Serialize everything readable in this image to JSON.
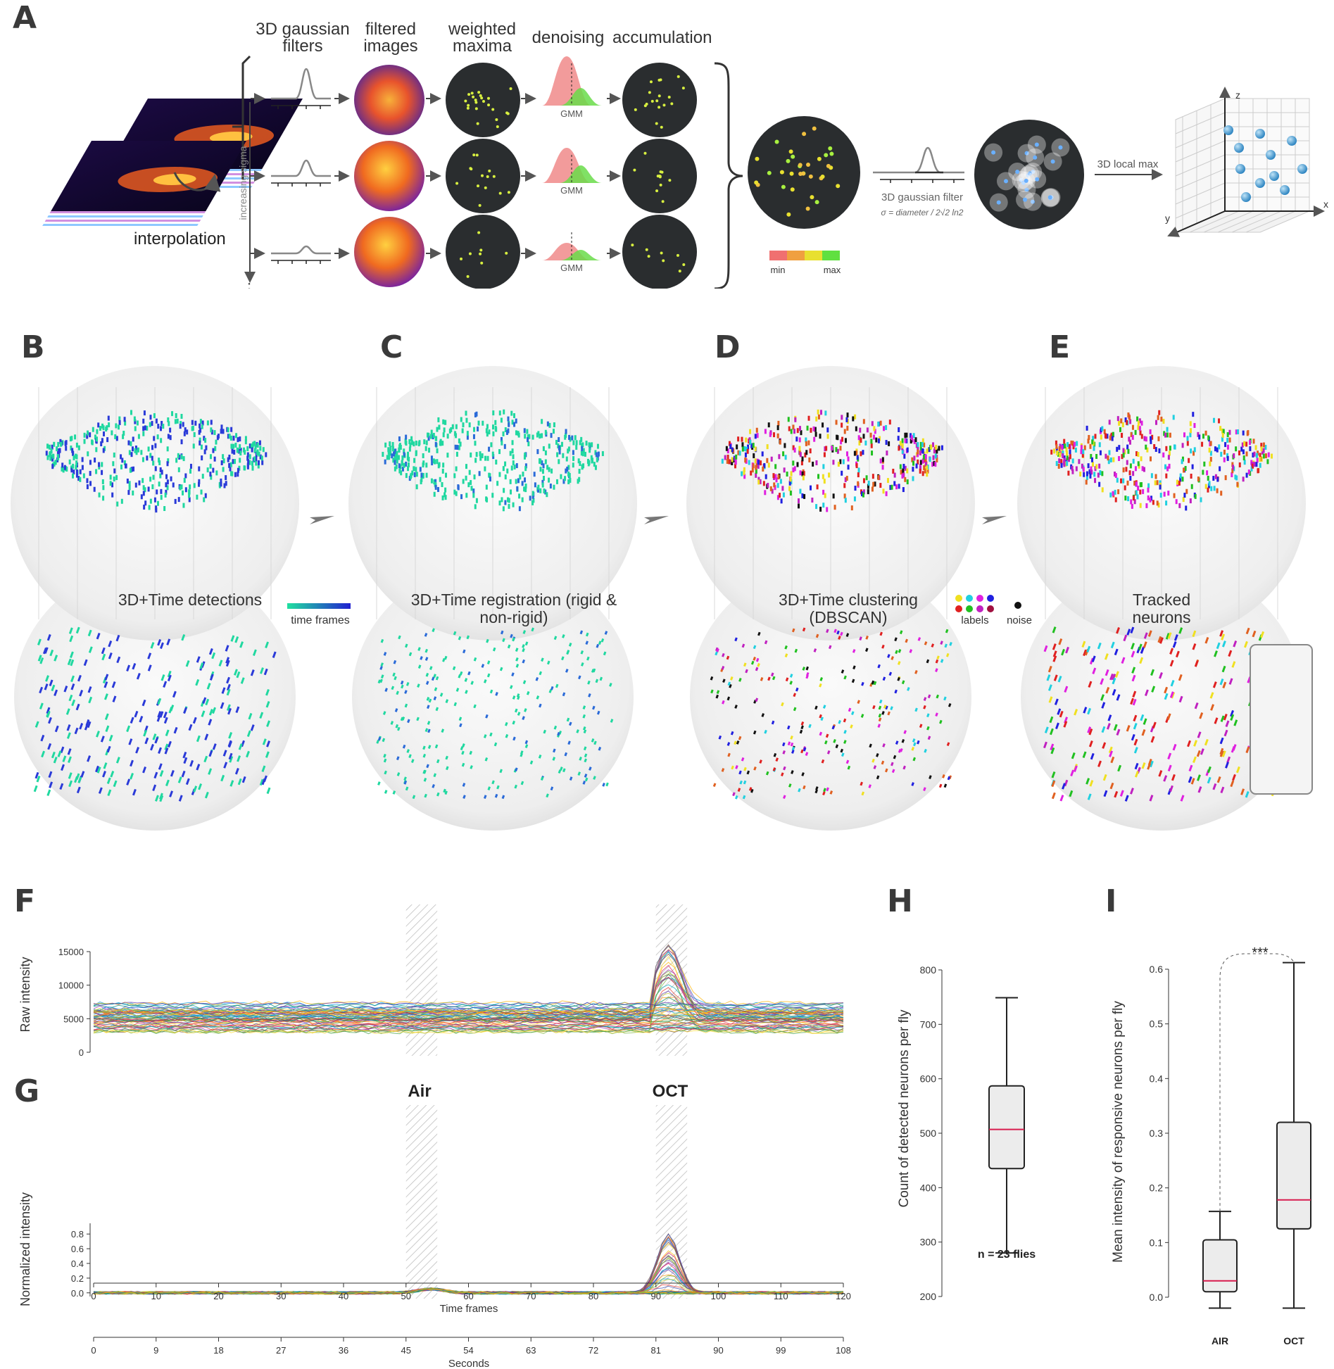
{
  "panels": {
    "a": "A",
    "b": "B",
    "c": "C",
    "d": "D",
    "e": "E",
    "f": "F",
    "g": "G",
    "h": "H",
    "i": "I"
  },
  "pipeline": {
    "steps": [
      "3D gaussian filters",
      "filtered images",
      "weighted maxima",
      "denoising",
      "accumulation"
    ],
    "interpolation": "interpolation",
    "increasing_sigma": "increasing sigma",
    "dots": "⋮",
    "gmm": "GMM",
    "filter_label": "3D gaussian filter",
    "sigma_formula": "σ = diameter / 2√2 ln2",
    "local_max": "3D local max",
    "colorbar_min": "min",
    "colorbar_max": "max",
    "axis_x": "x",
    "axis_y": "y",
    "axis_z": "z"
  },
  "stages": {
    "b": "3D+Time detections",
    "c": "3D+Time registration (rigid & non-rigid)",
    "d": "3D+Time clustering (DBSCAN)",
    "e": "Tracked neurons",
    "time_frames": "time frames",
    "labels": "labels",
    "noise": "noise"
  },
  "colors": {
    "bg_circle": "#f1f1f1",
    "dark_disc": "#2a2d2f",
    "detect_green": "#20d8a0",
    "detect_blue": "#2a3ad8",
    "median_red": "#d81b4e",
    "label_palette": [
      "#f0e020",
      "#20d0e0",
      "#e020e0",
      "#2020e0",
      "#e02020",
      "#20c020",
      "#c020c0",
      "#e06020"
    ]
  },
  "chart_data": [
    {
      "type": "line",
      "panel": "F",
      "ylabel": "Raw intensity",
      "ylim": [
        0,
        15000
      ],
      "yticks": [
        0,
        5000,
        10000,
        15000
      ],
      "xlim": [
        0,
        120
      ],
      "stimuli": [
        {
          "label": "Air",
          "start": 50,
          "end": 55
        },
        {
          "label": "OCT",
          "start": 90,
          "end": 95
        }
      ],
      "series_summary": {
        "baseline_band": [
          3000,
          7500
        ],
        "peak_max": 16000,
        "peak_frame": 92
      }
    },
    {
      "type": "line",
      "panel": "G",
      "ylabel": "Normalized intensity",
      "xlabel": "Time frames",
      "xlabel2": "Seconds",
      "ylim": [
        -0.05,
        0.85
      ],
      "yticks": [
        0.0,
        0.2,
        0.4,
        0.6,
        0.8
      ],
      "xticks": [
        0,
        10,
        20,
        30,
        40,
        50,
        60,
        70,
        80,
        90,
        100,
        110,
        120
      ],
      "xticks_seconds": [
        0,
        9,
        18,
        27,
        36,
        45,
        54,
        63,
        72,
        81,
        90,
        99,
        108
      ],
      "stimuli": [
        {
          "label": "Air",
          "start": 50,
          "end": 55
        },
        {
          "label": "OCT",
          "start": 90,
          "end": 95
        }
      ],
      "series_summary": {
        "baseline": 0.0,
        "air_peak": 0.1,
        "oct_peak_max": 0.8,
        "peak_frame": 92
      }
    },
    {
      "type": "box",
      "panel": "H",
      "ylabel": "Count of detected neurons per fly",
      "ylim": [
        200,
        800
      ],
      "yticks": [
        200,
        300,
        400,
        500,
        600,
        700,
        800
      ],
      "boxes": [
        {
          "label": "",
          "min": 280,
          "q1": 435,
          "median": 507,
          "q3": 587,
          "max": 749
        }
      ],
      "annotation": "n = 23 flies"
    },
    {
      "type": "box",
      "panel": "I",
      "ylabel": "Mean intensity of responsive neurons per fly",
      "ylim": [
        0.0,
        0.6
      ],
      "yticks": [
        0.0,
        0.1,
        0.2,
        0.3,
        0.4,
        0.5,
        0.6
      ],
      "boxes": [
        {
          "label": "AIR",
          "min": -0.02,
          "q1": 0.01,
          "median": 0.03,
          "q3": 0.105,
          "max": 0.157
        },
        {
          "label": "OCT",
          "min": -0.02,
          "q1": 0.125,
          "median": 0.178,
          "q3": 0.32,
          "max": 0.612
        }
      ],
      "significance": "***"
    }
  ]
}
